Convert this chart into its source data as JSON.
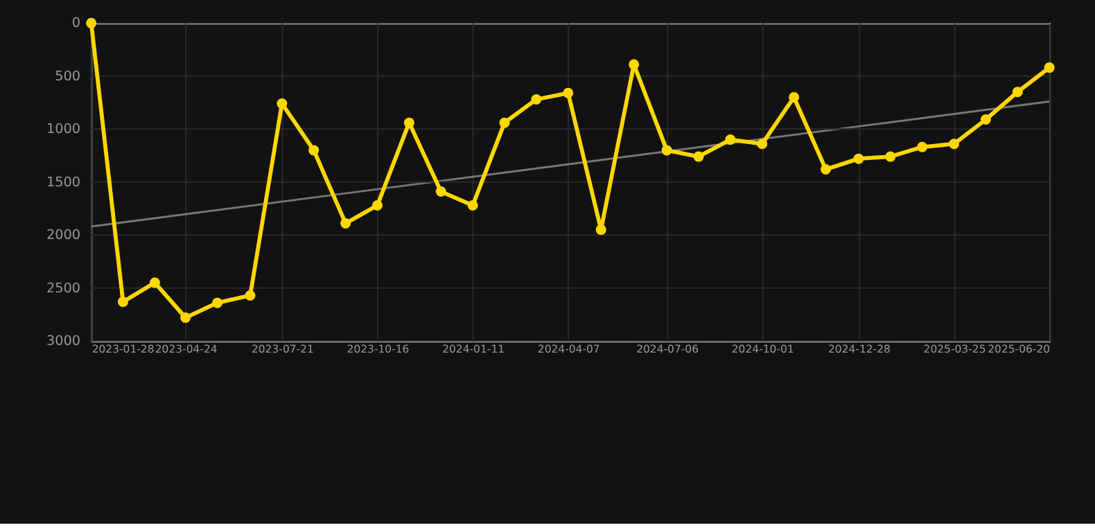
{
  "chart_data": {
    "type": "line",
    "x": [
      "2023-01-28",
      "2023-02-26",
      "2023-03-27",
      "2023-04-24",
      "2023-05-23",
      "2023-06-22",
      "2023-07-21",
      "2023-08-19",
      "2023-09-17",
      "2023-10-16",
      "2023-11-14",
      "2023-12-13",
      "2024-01-11",
      "2024-02-09",
      "2024-03-09",
      "2024-04-07",
      "2024-05-07",
      "2024-06-06",
      "2024-07-06",
      "2024-08-04",
      "2024-09-02",
      "2024-10-01",
      "2024-10-30",
      "2024-11-28",
      "2024-12-28",
      "2025-01-26",
      "2025-02-24",
      "2025-03-25",
      "2025-04-23",
      "2025-05-22",
      "2025-06-20"
    ],
    "series": [
      {
        "type": "line",
        "color": "#ffd700",
        "marker": "circle",
        "values": [
          0,
          2630,
          2450,
          2780,
          2640,
          2570,
          760,
          1200,
          1890,
          1720,
          940,
          1590,
          1720,
          940,
          720,
          660,
          1950,
          390,
          1200,
          1260,
          1100,
          1140,
          700,
          1380,
          1280,
          1260,
          1170,
          1140,
          910,
          650,
          420
        ]
      },
      {
        "type": "line",
        "color": "#777777",
        "marker": "none",
        "x": [
          "2023-01-28",
          "2025-06-20"
        ],
        "values": [
          1920,
          740
        ]
      }
    ],
    "xlim": [
      "2023-01-28",
      "2025-06-20"
    ],
    "xticks": [
      "2023-01-28",
      "2023-04-24",
      "2023-07-21",
      "2023-10-16",
      "2024-01-11",
      "2024-04-07",
      "2024-07-06",
      "2024-10-01",
      "2024-12-28",
      "2025-03-25",
      "2025-06-20"
    ],
    "ylim": [
      3000,
      0
    ],
    "yticks": [
      0,
      500,
      1000,
      1500,
      2000,
      2500,
      3000
    ],
    "grid": true
  }
}
